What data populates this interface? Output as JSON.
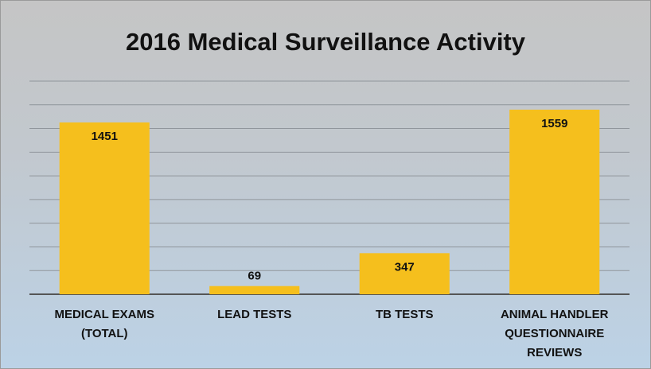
{
  "chart_data": {
    "type": "bar",
    "title": "2016 Medical Surveillance Activity",
    "categories": [
      "MEDICAL EXAMS (TOTAL)",
      "LEAD TESTS",
      "TB TESTS",
      "ANIMAL HANDLER QUESTIONNAIRE REVIEWS"
    ],
    "values": [
      1451,
      69,
      347,
      1559
    ],
    "color": "#f5bf1d",
    "ylim": [
      0,
      1800
    ],
    "yticks": [
      0,
      200,
      400,
      600,
      800,
      1000,
      1200,
      1400,
      1600,
      1800
    ],
    "grid": true
  }
}
